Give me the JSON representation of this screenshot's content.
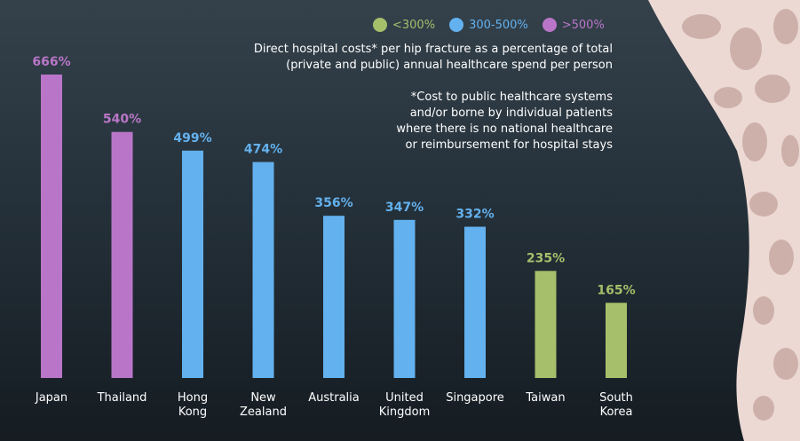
{
  "colors": {
    "low": "#a6bf6b",
    "mid": "#63b1ee",
    "high": "#b976c8"
  },
  "legend": [
    {
      "label": "<300%",
      "color": "#a6bf6b"
    },
    {
      "label": "300-500%",
      "color": "#63b1ee"
    },
    {
      "label": ">500%",
      "color": "#b976c8"
    }
  ],
  "notes": {
    "main": "Direct hospital costs* per hip fracture as a percentage of total\n(private and public) annual healthcare spend per person",
    "footnote": "*Cost to public healthcare systems\nand/or borne by individual patients\nwhere there is no national healthcare\nor reimbursement for hospital stays"
  },
  "chart_data": {
    "type": "bar",
    "categories": [
      "Japan",
      "Thailand",
      "Hong\nKong",
      "New\nZealand",
      "Australia",
      "United\nKingdom",
      "Singapore",
      "Taiwan",
      "South\nKorea"
    ],
    "values": [
      666,
      540,
      499,
      474,
      356,
      347,
      332,
      235,
      165
    ],
    "value_labels": [
      "666%",
      "540%",
      "499%",
      "474%",
      "356%",
      "347%",
      "332%",
      "235%",
      "165%"
    ],
    "bar_colors": [
      "#b976c8",
      "#b976c8",
      "#63b1ee",
      "#63b1ee",
      "#63b1ee",
      "#63b1ee",
      "#63b1ee",
      "#a6bf6b",
      "#a6bf6b"
    ],
    "ylim": [
      0,
      666
    ],
    "grid": false,
    "legend_position": "top-right"
  }
}
